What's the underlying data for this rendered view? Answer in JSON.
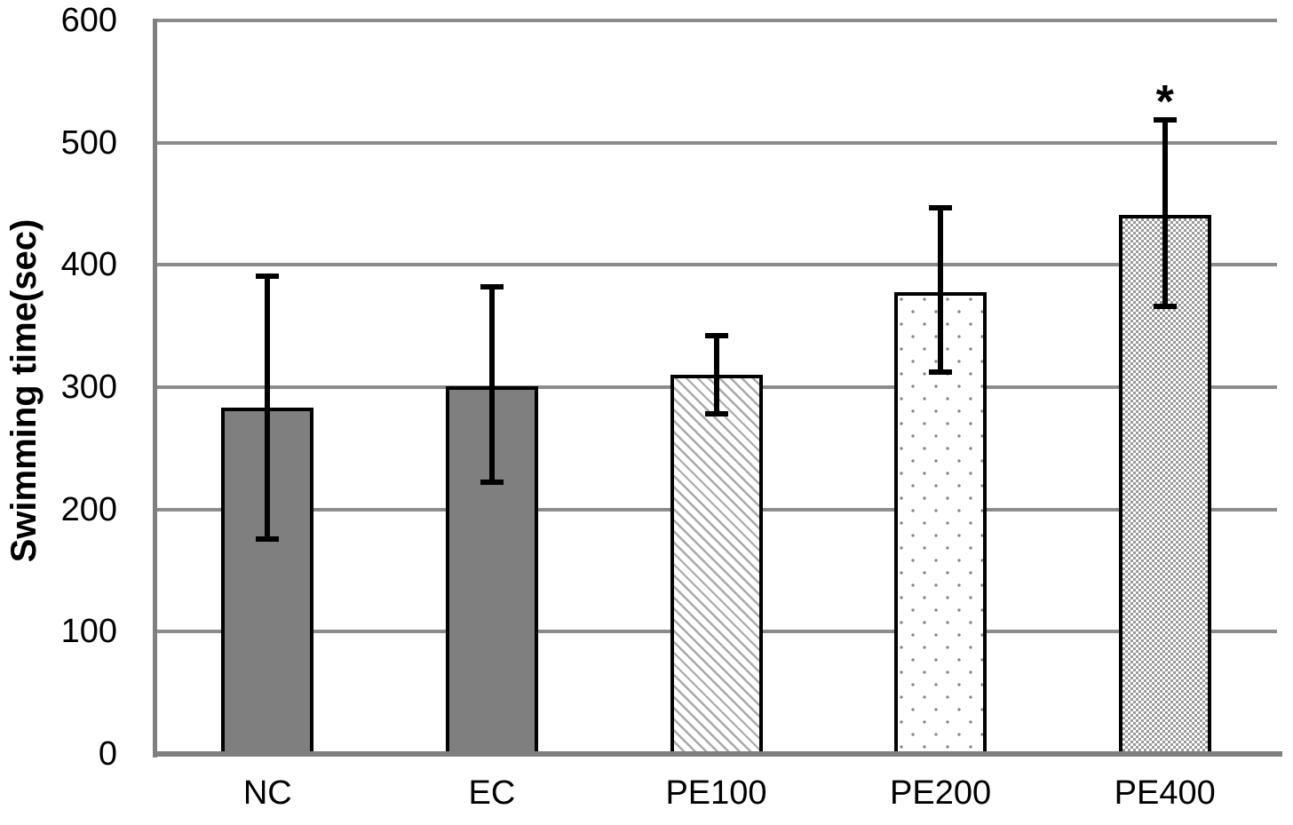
{
  "chart_data": {
    "type": "bar",
    "title": "",
    "xlabel": "",
    "ylabel": "Swimming time(sec)",
    "ylim": [
      0,
      600
    ],
    "yticks": [
      0,
      100,
      200,
      300,
      400,
      500,
      600
    ],
    "grid": true,
    "legend": false,
    "categories": [
      "NC",
      "EC",
      "PE100",
      "PE200",
      "PE400"
    ],
    "values": [
      283,
      301,
      310,
      378,
      441
    ],
    "error_top": [
      391,
      382,
      342,
      447,
      519
    ],
    "error_bottom": [
      176,
      222,
      278,
      312,
      366
    ],
    "bar_patterns": [
      "solid",
      "solid",
      "diagonal",
      "dots",
      "checker"
    ],
    "annotations": [
      {
        "category": "PE400",
        "text": "*"
      }
    ]
  },
  "colors": {
    "background": "#ffffff",
    "bar_fill_gray": "#7f7f7f",
    "bar_border": "#000000",
    "gridline": "#8c8c8c",
    "axis_line": "#7f7f7f",
    "error_bar": "#000000",
    "hatch_gray": "#a9a9a9",
    "dot_gray": "#858585",
    "checker_gray": "#9a9a9a",
    "text": "#000000"
  }
}
